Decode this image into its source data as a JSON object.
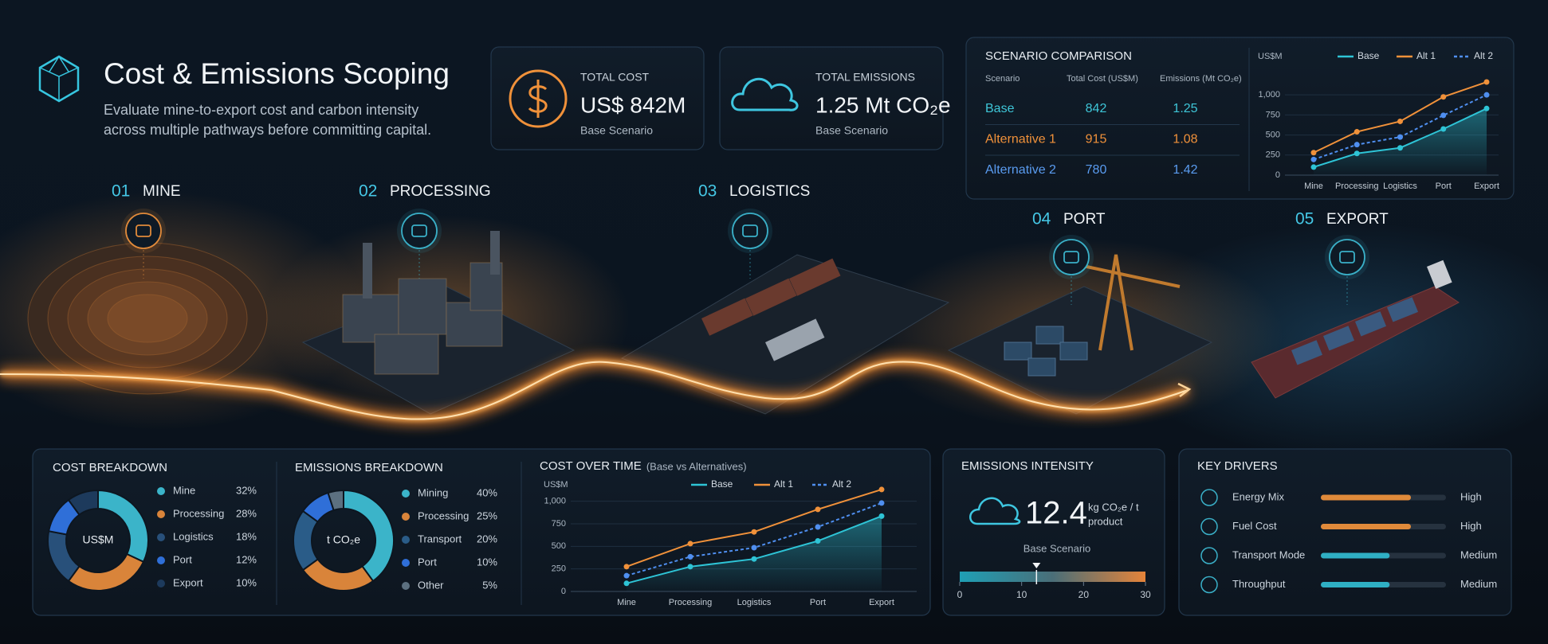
{
  "header": {
    "title": "Cost & Emissions Scoping",
    "subtitle_lines": [
      "Evaluate mine-to-export cost and carbon intensity",
      "across multiple pathways before committing capital."
    ]
  },
  "kpis": [
    {
      "label": "TOTAL COST",
      "value": "US$ 842M",
      "note": "Base Scenario",
      "color": "#f0913a"
    },
    {
      "label": "TOTAL EMISSIONS",
      "value": "1.25 Mt CO₂e",
      "note": "Base Scenario",
      "color": "#3ec6e0"
    }
  ],
  "stages": [
    {
      "number": "01",
      "label": "MINE"
    },
    {
      "number": "02",
      "label": "PROCESSING"
    },
    {
      "number": "03",
      "label": "LOGISTICS"
    },
    {
      "number": "04",
      "label": "PORT"
    },
    {
      "number": "05",
      "label": "EXPORT"
    }
  ],
  "scenario_comparison": {
    "title": "SCENARIO COMPARISON",
    "table": {
      "header": [
        "Scenario",
        "Total Cost (US$M)",
        "Emissions (Mt CO₂e)"
      ],
      "rows": [
        [
          "Base",
          "842",
          "1.25"
        ],
        [
          "Alternative 1",
          "915",
          "1.08"
        ],
        [
          "Alternative 2",
          "780",
          "1.42"
        ]
      ],
      "row_colors": [
        "#3ec6d8",
        "#f0913a",
        "#5a9cf0"
      ]
    },
    "chart": {
      "type": "line",
      "y_label": "US$M",
      "categories": [
        "Mine",
        "Processing",
        "Logistics",
        "Port",
        "Export"
      ],
      "ylim": [
        0,
        1200
      ],
      "yticks": [
        0,
        250,
        500,
        750,
        {
          "value": 1000,
          "label": "1,000"
        }
      ],
      "grid": true,
      "series": [
        {
          "name": "Base",
          "color": "#2ec4d6",
          "style": "solid",
          "area": true,
          "values": [
            100,
            270,
            340,
            575,
            830
          ]
        },
        {
          "name": "Alt 1",
          "color": "#f0913a",
          "style": "solid",
          "area": false,
          "values": [
            280,
            540,
            670,
            975,
            1160
          ]
        },
        {
          "name": "Alt 2",
          "color": "#4f8ff0",
          "style": "dashed",
          "area": false,
          "values": [
            195,
            380,
            475,
            745,
            1000
          ]
        }
      ]
    }
  },
  "cost_breakdown": {
    "title": "COST BREAKDOWN",
    "center_label": "US$M",
    "chart": {
      "type": "pie",
      "categories": [
        "Mine",
        "Processing",
        "Logistics",
        "Port",
        "Export"
      ],
      "values": [
        32,
        28,
        18,
        12,
        10
      ],
      "value_labels": [
        "32%",
        "28%",
        "18%",
        "12%",
        "10%"
      ],
      "colors": [
        "#3bb4c9",
        "#d9843a",
        "#28507a",
        "#2f6fd8",
        "#1d3a5c"
      ]
    }
  },
  "emissions_breakdown": {
    "title": "EMISSIONS BREAKDOWN",
    "center_label": "t CO₂e",
    "chart": {
      "type": "pie",
      "categories": [
        "Mining",
        "Processing",
        "Transport",
        "Port",
        "Other"
      ],
      "values": [
        40,
        25,
        20,
        10,
        5
      ],
      "value_labels": [
        "40%",
        "25%",
        "20%",
        "10%",
        "5%"
      ],
      "colors": [
        "#3bb4c9",
        "#d9843a",
        "#2a5c88",
        "#2f6fd8",
        "#5c7080"
      ]
    }
  },
  "cost_over_time": {
    "title": "COST OVER TIME",
    "subtitle": "(Base vs Alternatives)",
    "chart": {
      "type": "line",
      "y_label": "US$M",
      "categories": [
        "Mine",
        "Processing",
        "Logistics",
        "Port",
        "Export"
      ],
      "ylim": [
        0,
        1200
      ],
      "yticks": [
        0,
        250,
        500,
        750,
        {
          "value": 1000,
          "label": "1,000"
        }
      ],
      "grid": true,
      "series": [
        {
          "name": "Base",
          "color": "#2ec4d6",
          "style": "solid",
          "area": true,
          "values": [
            90,
            275,
            360,
            560,
            835
          ]
        },
        {
          "name": "Alt 1",
          "color": "#f0913a",
          "style": "solid",
          "area": false,
          "values": [
            275,
            530,
            660,
            910,
            1130
          ]
        },
        {
          "name": "Alt 2",
          "color": "#4f8ff0",
          "style": "dashed",
          "area": false,
          "values": [
            175,
            385,
            485,
            715,
            980
          ]
        }
      ]
    }
  },
  "intensity": {
    "title": "EMISSIONS INTENSITY",
    "value": 12.4,
    "unit_lines": [
      "kg CO₂e / t",
      "product"
    ],
    "note": "Base Scenario",
    "xlim": [
      0,
      30
    ],
    "xticks": [
      0,
      10,
      20,
      30
    ]
  },
  "key_drivers": {
    "title": "KEY DRIVERS",
    "xlim": [
      0,
      100
    ],
    "items": [
      {
        "name": "Energy Mix",
        "level": 72,
        "rating": "High",
        "color": "#e08a3a"
      },
      {
        "name": "Fuel Cost",
        "level": 72,
        "rating": "High",
        "color": "#e08a3a"
      },
      {
        "name": "Transport Mode",
        "level": 55,
        "rating": "Medium",
        "color": "#2fb0c4"
      },
      {
        "name": "Throughput",
        "level": 55,
        "rating": "Medium",
        "color": "#2fb0c4"
      }
    ]
  }
}
